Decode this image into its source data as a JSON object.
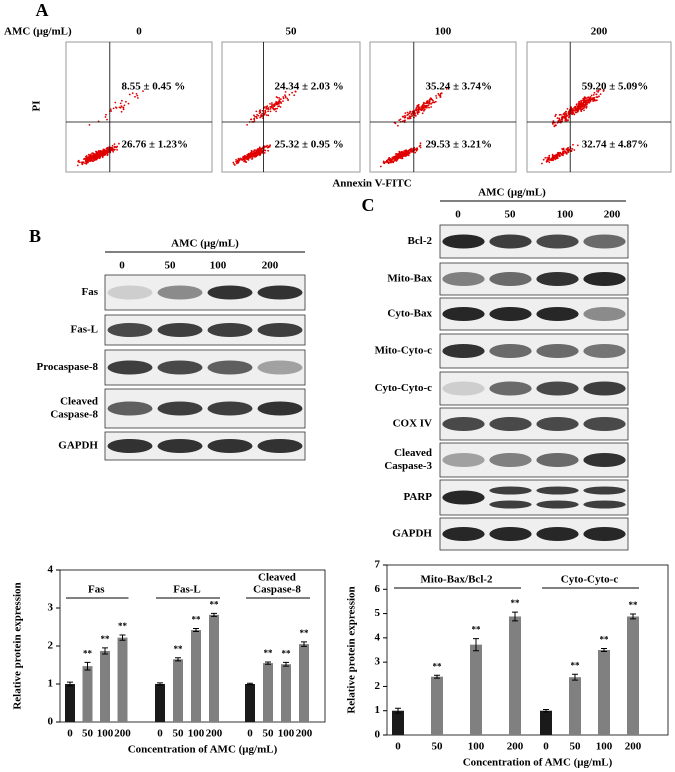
{
  "panel_a": {
    "label": "A",
    "dose_label": "AMC (μg/mL)",
    "y_label": "PI",
    "x_label": "Annexin V-FITC",
    "plots": [
      {
        "dose": "0",
        "upper_right": "8.55 ± 0.45 %",
        "lower_right": "26.76 ± 1.23%"
      },
      {
        "dose": "50",
        "upper_right": "24.34 ± 2.03 %",
        "lower_right": "25.32 ± 0.95 %"
      },
      {
        "dose": "100",
        "upper_right": "35.24 ± 3.74%",
        "lower_right": "29.53 ± 3.21%"
      },
      {
        "dose": "200",
        "upper_right": "59.20 ± 5.09%",
        "lower_right": "32.74 ± 4.87%"
      }
    ]
  },
  "panel_b": {
    "label": "B",
    "header": "AMC (μg/mL)",
    "doses": [
      "0",
      "50",
      "100",
      "200"
    ],
    "rows": [
      [
        "Fas"
      ],
      [
        "Fas-L"
      ],
      [
        "Procaspase-8"
      ],
      [
        "Cleaved",
        "Caspase-8"
      ],
      [
        "GAPDH"
      ]
    ]
  },
  "panel_c": {
    "label": "C",
    "header": "AMC (μg/mL)",
    "doses": [
      "0",
      "50",
      "100",
      "200"
    ],
    "rows": [
      [
        "Bcl-2"
      ],
      [
        "Mito-Bax"
      ],
      [
        "Cyto-Bax"
      ],
      [
        "Mito-Cyto-c"
      ],
      [
        "Cyto-Cyto-c"
      ],
      [
        "COX IV"
      ],
      [
        "Cleaved",
        "Caspase-3"
      ],
      [
        "PARP"
      ],
      [
        "GAPDH"
      ]
    ]
  },
  "chart_data": [
    {
      "type": "bar",
      "y_label": "Relative protein expression",
      "x_label": "Concentration of AMC (μg/mL)",
      "ylim": [
        0,
        4
      ],
      "yticks": [
        0,
        1,
        2,
        3,
        4
      ],
      "categories": [
        "0",
        "50",
        "100",
        "200"
      ],
      "colors": [
        "#1a1a1a",
        "#808080",
        "#808080",
        "#808080"
      ],
      "groups": [
        {
          "name": [
            "Fas"
          ],
          "values": [
            1.0,
            1.47,
            1.87,
            2.22
          ],
          "errors": [
            0.05,
            0.1,
            0.08,
            0.07
          ],
          "significance": [
            null,
            "**",
            "**",
            "**"
          ]
        },
        {
          "name": [
            "Fas-L"
          ],
          "values": [
            1.0,
            1.65,
            2.42,
            2.82
          ],
          "errors": [
            0.03,
            0.04,
            0.04,
            0.04
          ],
          "significance": [
            null,
            "**",
            "**",
            "**"
          ]
        },
        {
          "name": [
            "Cleaved",
            "Caspase-8"
          ],
          "values": [
            1.0,
            1.55,
            1.52,
            2.05
          ],
          "errors": [
            0.02,
            0.03,
            0.05,
            0.06
          ],
          "significance": [
            null,
            "**",
            "**",
            "**"
          ]
        }
      ]
    },
    {
      "type": "bar",
      "y_label": "Relative protein expression",
      "x_label": "Concentration of AMC (μg/mL)",
      "ylim": [
        0,
        7
      ],
      "yticks": [
        0,
        1,
        2,
        3,
        4,
        5,
        6,
        7
      ],
      "categories": [
        "0",
        "50",
        "100",
        "200"
      ],
      "colors": [
        "#1a1a1a",
        "#808080",
        "#808080",
        "#808080"
      ],
      "groups": [
        {
          "name": [
            "Mito-Bax/Bcl-2"
          ],
          "values": [
            1.0,
            2.4,
            3.72,
            4.88
          ],
          "errors": [
            0.1,
            0.06,
            0.25,
            0.18
          ],
          "significance": [
            null,
            "**",
            "**",
            "**"
          ]
        },
        {
          "name": [
            "Cyto-Cyto-c"
          ],
          "values": [
            1.0,
            2.38,
            3.5,
            4.88
          ],
          "errors": [
            0.05,
            0.12,
            0.06,
            0.1
          ],
          "significance": [
            null,
            "**",
            "**",
            "**"
          ]
        }
      ]
    }
  ]
}
